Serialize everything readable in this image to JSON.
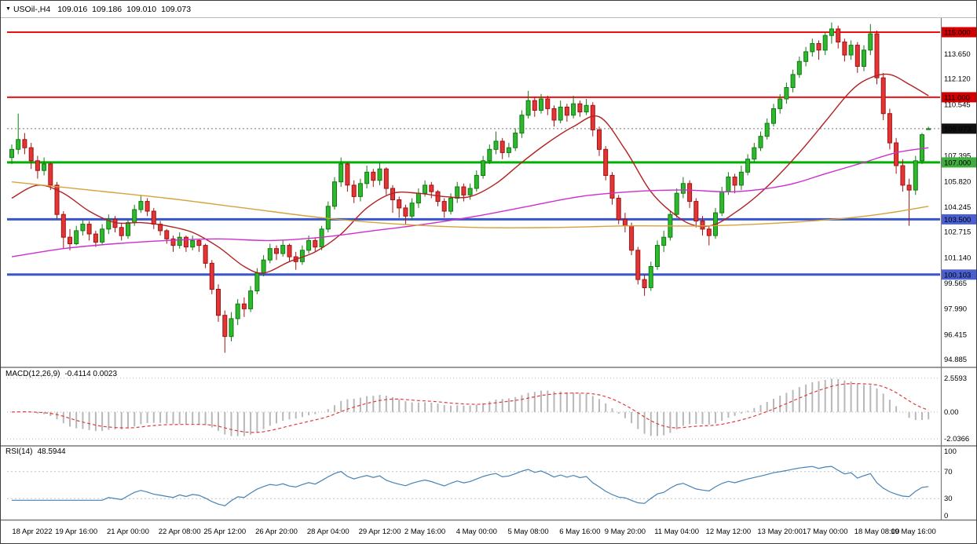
{
  "header": {
    "icon": "▼",
    "symbol_period": "USOil-,H4",
    "open": "109.016",
    "high": "109.186",
    "low": "109.010",
    "close": "109.073"
  },
  "chart_data": {
    "type": "candlestick",
    "symbol": "USOil-",
    "timeframe": "H4",
    "title": "USOil-,H4 109.016 109.186 109.010 109.073",
    "background": "#ffffff",
    "colors": {
      "bull": "#2eb82e",
      "bull_border": "#127a12",
      "bear": "#e23535",
      "bear_border": "#a31212",
      "ma_fast": "#b22222",
      "ma_medium": "#cc2fcc",
      "ma_slow": "#d8a23a",
      "macd_hist": "#b8b8b8",
      "macd_signal": "#e03c3c",
      "rsi": "#4682b4",
      "level_dotted": "#c4c4c4"
    },
    "price_axis": {
      "min": 94.45,
      "max": 115.87,
      "tick_labels": [
        "113.650",
        "112.120",
        "110.545",
        "107.395",
        "105.820",
        "104.245",
        "102.715",
        "101.140",
        "99.565",
        "97.990",
        "96.415",
        "94.885"
      ]
    },
    "current_price": {
      "price": 109.073,
      "label": "109.073",
      "line_color": "#777777",
      "badge_bg": "#111111"
    },
    "hlines": [
      {
        "price": 115.0,
        "label": "115.000",
        "color": "#ee1111",
        "badge_bg": "#d40000",
        "width": 2
      },
      {
        "price": 111.0,
        "label": "111.000",
        "color": "#ee1111",
        "badge_bg": "#d40000",
        "width": 2
      },
      {
        "price": 107.0,
        "label": "107.000",
        "color": "#00b000",
        "badge_bg": "#3fae3f",
        "width": 3
      },
      {
        "price": 103.5,
        "label": "103.500",
        "color": "#3a56cc",
        "badge_bg": "#4a5fd0",
        "width": 3
      },
      {
        "price": 100.103,
        "label": "100.103",
        "color": "#3a56cc",
        "badge_bg": "#4a5fd0",
        "width": 3
      }
    ],
    "moving_averages": [
      {
        "name": "fast",
        "color": "#b22222",
        "points": [
          [
            0,
            104.8
          ],
          [
            4,
            105.6
          ],
          [
            8,
            105.1
          ],
          [
            12,
            104.0
          ],
          [
            16,
            103.3
          ],
          [
            20,
            103.3
          ],
          [
            24,
            103.1
          ],
          [
            28,
            102.7
          ],
          [
            32,
            101.8
          ],
          [
            36,
            100.6
          ],
          [
            39,
            100.2
          ],
          [
            43,
            100.9
          ],
          [
            47,
            101.5
          ],
          [
            51,
            102.6
          ],
          [
            55,
            104.2
          ],
          [
            59,
            105.1
          ],
          [
            63,
            105.1
          ],
          [
            67,
            104.9
          ],
          [
            71,
            104.9
          ],
          [
            75,
            105.7
          ],
          [
            79,
            107.0
          ],
          [
            83,
            108.2
          ],
          [
            87,
            109.2
          ],
          [
            91,
            109.8
          ],
          [
            95,
            107.8
          ],
          [
            99,
            105.2
          ],
          [
            103,
            103.7
          ],
          [
            106,
            103.1
          ],
          [
            109,
            103.2
          ],
          [
            112,
            103.9
          ],
          [
            115,
            104.8
          ],
          [
            118,
            105.9
          ],
          [
            122,
            107.6
          ],
          [
            126,
            109.5
          ],
          [
            130,
            111.4
          ],
          [
            133,
            112.2
          ],
          [
            136,
            112.4
          ],
          [
            139,
            111.8
          ],
          [
            142,
            111.1
          ]
        ]
      },
      {
        "name": "medium",
        "color": "#cc2fcc",
        "points": [
          [
            0,
            101.2
          ],
          [
            8,
            101.7
          ],
          [
            16,
            102.0
          ],
          [
            24,
            102.2
          ],
          [
            32,
            102.3
          ],
          [
            40,
            102.2
          ],
          [
            48,
            102.4
          ],
          [
            56,
            102.8
          ],
          [
            64,
            103.2
          ],
          [
            72,
            103.7
          ],
          [
            80,
            104.3
          ],
          [
            88,
            104.9
          ],
          [
            96,
            105.2
          ],
          [
            104,
            105.3
          ],
          [
            112,
            105.2
          ],
          [
            120,
            105.6
          ],
          [
            126,
            106.3
          ],
          [
            132,
            107.0
          ],
          [
            137,
            107.6
          ],
          [
            142,
            107.9
          ]
        ]
      },
      {
        "name": "slow",
        "color": "#d8a23a",
        "points": [
          [
            0,
            105.8
          ],
          [
            12,
            105.3
          ],
          [
            24,
            104.8
          ],
          [
            36,
            104.2
          ],
          [
            48,
            103.6
          ],
          [
            60,
            103.2
          ],
          [
            72,
            103.0
          ],
          [
            84,
            103.0
          ],
          [
            96,
            103.1
          ],
          [
            108,
            103.1
          ],
          [
            120,
            103.3
          ],
          [
            130,
            103.6
          ],
          [
            136,
            103.9
          ],
          [
            142,
            104.3
          ]
        ]
      }
    ],
    "candles": [
      [
        107.3,
        108.1,
        106.9,
        107.8
      ],
      [
        107.8,
        110.0,
        107.5,
        108.4
      ],
      [
        108.4,
        108.8,
        107.5,
        107.9
      ],
      [
        107.9,
        108.2,
        106.6,
        107.1
      ],
      [
        107.1,
        107.4,
        106.0,
        106.5
      ],
      [
        106.5,
        107.3,
        106.2,
        106.9
      ],
      [
        106.9,
        107.0,
        105.3,
        105.6
      ],
      [
        105.6,
        105.8,
        103.5,
        103.8
      ],
      [
        103.8,
        104.0,
        101.7,
        102.4
      ],
      [
        102.4,
        102.9,
        101.6,
        102.0
      ],
      [
        102.0,
        103.1,
        101.9,
        102.8
      ],
      [
        102.8,
        103.5,
        102.5,
        103.2
      ],
      [
        103.2,
        103.4,
        102.2,
        102.6
      ],
      [
        102.6,
        102.8,
        101.8,
        102.1
      ],
      [
        102.1,
        103.2,
        101.9,
        102.9
      ],
      [
        102.9,
        103.8,
        102.6,
        103.5
      ],
      [
        103.5,
        103.7,
        102.7,
        103.0
      ],
      [
        103.0,
        103.3,
        102.2,
        102.5
      ],
      [
        102.5,
        103.5,
        102.3,
        103.3
      ],
      [
        103.3,
        104.4,
        103.1,
        104.1
      ],
      [
        104.1,
        105.0,
        103.9,
        104.6
      ],
      [
        104.6,
        104.8,
        103.7,
        104.0
      ],
      [
        104.0,
        104.2,
        102.9,
        103.2
      ],
      [
        103.2,
        103.4,
        102.5,
        102.8
      ],
      [
        102.8,
        102.9,
        102.0,
        102.3
      ],
      [
        102.3,
        102.5,
        101.5,
        101.9
      ],
      [
        101.9,
        102.7,
        101.7,
        102.4
      ],
      [
        102.4,
        102.5,
        101.5,
        101.8
      ],
      [
        101.8,
        102.5,
        101.6,
        102.2
      ],
      [
        102.2,
        102.3,
        101.5,
        101.9
      ],
      [
        101.9,
        102.0,
        100.5,
        100.8
      ],
      [
        100.8,
        101.0,
        98.9,
        99.2
      ],
      [
        99.2,
        99.5,
        97.2,
        97.6
      ],
      [
        97.6,
        97.9,
        95.3,
        96.3
      ],
      [
        96.3,
        97.8,
        96.0,
        97.4
      ],
      [
        97.4,
        98.6,
        97.0,
        98.3
      ],
      [
        98.3,
        98.7,
        97.5,
        98.0
      ],
      [
        98.0,
        99.4,
        97.8,
        99.1
      ],
      [
        99.1,
        100.5,
        98.9,
        100.2
      ],
      [
        100.2,
        101.3,
        100.0,
        101.0
      ],
      [
        101.0,
        102.0,
        100.8,
        101.7
      ],
      [
        101.7,
        101.9,
        101.0,
        101.4
      ],
      [
        101.4,
        102.2,
        101.2,
        101.9
      ],
      [
        101.9,
        102.0,
        100.9,
        101.2
      ],
      [
        101.2,
        101.5,
        100.4,
        100.9
      ],
      [
        100.9,
        101.9,
        100.7,
        101.6
      ],
      [
        101.6,
        102.5,
        101.4,
        102.2
      ],
      [
        102.2,
        102.4,
        101.5,
        101.8
      ],
      [
        101.8,
        103.1,
        101.6,
        102.9
      ],
      [
        102.9,
        104.6,
        102.7,
        104.3
      ],
      [
        104.3,
        106.1,
        104.1,
        105.8
      ],
      [
        105.8,
        107.3,
        105.5,
        106.9
      ],
      [
        106.9,
        107.0,
        105.2,
        105.6
      ],
      [
        105.6,
        105.9,
        104.5,
        104.9
      ],
      [
        104.9,
        106.0,
        104.6,
        105.7
      ],
      [
        105.7,
        106.8,
        105.4,
        106.4
      ],
      [
        106.4,
        106.6,
        105.5,
        105.9
      ],
      [
        105.9,
        107.0,
        105.6,
        106.6
      ],
      [
        106.6,
        106.7,
        105.0,
        105.4
      ],
      [
        105.4,
        105.6,
        103.9,
        104.7
      ],
      [
        104.7,
        104.9,
        103.6,
        104.2
      ],
      [
        104.2,
        104.4,
        103.2,
        103.7
      ],
      [
        103.7,
        104.8,
        103.5,
        104.5
      ],
      [
        104.5,
        105.4,
        104.2,
        105.1
      ],
      [
        105.1,
        105.9,
        104.9,
        105.6
      ],
      [
        105.6,
        105.8,
        104.8,
        105.2
      ],
      [
        105.2,
        105.3,
        104.3,
        104.6
      ],
      [
        104.6,
        104.8,
        103.6,
        104.0
      ],
      [
        104.0,
        105.1,
        103.8,
        104.8
      ],
      [
        104.8,
        105.8,
        104.5,
        105.5
      ],
      [
        105.5,
        105.7,
        104.6,
        105.0
      ],
      [
        105.0,
        105.7,
        104.7,
        105.4
      ],
      [
        105.4,
        106.5,
        105.2,
        106.2
      ],
      [
        106.2,
        107.4,
        106.0,
        107.1
      ],
      [
        107.1,
        108.1,
        106.9,
        107.8
      ],
      [
        107.8,
        108.9,
        107.5,
        108.3
      ],
      [
        108.3,
        108.5,
        107.2,
        107.6
      ],
      [
        107.6,
        108.2,
        107.3,
        107.9
      ],
      [
        107.9,
        109.1,
        107.7,
        108.8
      ],
      [
        108.8,
        110.2,
        108.5,
        109.9
      ],
      [
        109.9,
        111.4,
        109.7,
        110.8
      ],
      [
        110.8,
        111.0,
        109.8,
        110.2
      ],
      [
        110.2,
        111.2,
        110.0,
        110.9
      ],
      [
        110.9,
        111.1,
        109.9,
        110.3
      ],
      [
        110.3,
        110.5,
        109.2,
        109.6
      ],
      [
        109.6,
        110.8,
        109.4,
        110.4
      ],
      [
        110.4,
        110.6,
        109.5,
        109.9
      ],
      [
        109.9,
        111.1,
        109.7,
        110.6
      ],
      [
        110.6,
        110.8,
        109.8,
        110.1
      ],
      [
        110.1,
        110.9,
        109.9,
        110.5
      ],
      [
        110.5,
        110.7,
        108.6,
        109.0
      ],
      [
        109.0,
        109.2,
        107.4,
        107.8
      ],
      [
        107.8,
        108.0,
        105.9,
        106.2
      ],
      [
        106.2,
        106.4,
        104.4,
        104.8
      ],
      [
        104.8,
        105.0,
        103.2,
        103.5
      ],
      [
        103.5,
        103.9,
        102.7,
        103.1
      ],
      [
        103.1,
        103.3,
        101.3,
        101.6
      ],
      [
        101.6,
        101.8,
        99.5,
        99.8
      ],
      [
        99.8,
        100.1,
        98.8,
        99.3
      ],
      [
        99.3,
        100.9,
        99.1,
        100.6
      ],
      [
        100.6,
        102.2,
        100.4,
        101.9
      ],
      [
        101.9,
        102.8,
        101.5,
        102.4
      ],
      [
        102.4,
        104.0,
        102.2,
        103.8
      ],
      [
        103.8,
        105.4,
        103.6,
        105.1
      ],
      [
        105.1,
        106.1,
        104.8,
        105.7
      ],
      [
        105.7,
        105.9,
        104.2,
        104.6
      ],
      [
        104.6,
        104.8,
        103.0,
        103.4
      ],
      [
        103.4,
        103.7,
        102.5,
        102.9
      ],
      [
        102.9,
        103.1,
        101.9,
        102.5
      ],
      [
        102.5,
        104.2,
        102.3,
        103.9
      ],
      [
        103.9,
        105.5,
        103.7,
        105.2
      ],
      [
        105.2,
        106.4,
        105.0,
        106.1
      ],
      [
        106.1,
        106.3,
        105.1,
        105.6
      ],
      [
        105.6,
        106.8,
        105.3,
        106.4
      ],
      [
        106.4,
        107.5,
        106.2,
        107.2
      ],
      [
        107.2,
        108.2,
        107.0,
        107.9
      ],
      [
        107.9,
        108.9,
        107.7,
        108.6
      ],
      [
        108.6,
        109.7,
        108.4,
        109.4
      ],
      [
        109.4,
        110.6,
        109.2,
        110.3
      ],
      [
        110.3,
        111.2,
        110.0,
        110.9
      ],
      [
        110.9,
        111.9,
        110.6,
        111.6
      ],
      [
        111.6,
        112.7,
        111.3,
        112.4
      ],
      [
        112.4,
        113.5,
        112.2,
        113.2
      ],
      [
        113.2,
        114.1,
        112.9,
        113.8
      ],
      [
        113.8,
        114.6,
        113.5,
        114.3
      ],
      [
        114.3,
        114.5,
        113.3,
        113.9
      ],
      [
        113.9,
        115.0,
        113.6,
        114.8
      ],
      [
        114.8,
        115.6,
        114.3,
        115.2
      ],
      [
        115.2,
        115.4,
        114.0,
        114.4
      ],
      [
        114.4,
        114.6,
        113.2,
        113.6
      ],
      [
        113.6,
        114.5,
        113.3,
        114.2
      ],
      [
        114.2,
        114.4,
        112.5,
        112.9
      ],
      [
        112.9,
        114.2,
        112.6,
        113.9
      ],
      [
        113.9,
        115.5,
        113.6,
        114.9
      ],
      [
        114.9,
        115.1,
        111.8,
        112.2
      ],
      [
        112.2,
        112.5,
        109.6,
        110.0
      ],
      [
        110.0,
        110.3,
        107.8,
        108.2
      ],
      [
        108.2,
        108.5,
        106.3,
        106.8
      ],
      [
        106.8,
        107.2,
        105.2,
        105.6
      ],
      [
        105.6,
        106.0,
        103.1,
        105.3
      ],
      [
        105.3,
        107.4,
        105.0,
        107.1
      ],
      [
        107.1,
        108.8,
        106.9,
        108.7
      ],
      [
        109.016,
        109.186,
        109.01,
        109.073
      ]
    ],
    "time_labels": [
      {
        "bar": 1,
        "text": "18 Apr 2022"
      },
      {
        "bar": 10,
        "text": "19 Apr 16:00"
      },
      {
        "bar": 18,
        "text": "21 Apr 00:00"
      },
      {
        "bar": 26,
        "text": "22 Apr 08:00"
      },
      {
        "bar": 33,
        "text": "25 Apr 12:00"
      },
      {
        "bar": 41,
        "text": "26 Apr 20:00"
      },
      {
        "bar": 49,
        "text": "28 Apr 04:00"
      },
      {
        "bar": 57,
        "text": "29 Apr 12:00"
      },
      {
        "bar": 64,
        "text": "2 May 16:00"
      },
      {
        "bar": 72,
        "text": "4 May 00:00"
      },
      {
        "bar": 80,
        "text": "5 May 08:00"
      },
      {
        "bar": 88,
        "text": "6 May 16:00"
      },
      {
        "bar": 95,
        "text": "9 May 20:00"
      },
      {
        "bar": 103,
        "text": "11 May 04:00"
      },
      {
        "bar": 111,
        "text": "12 May 12:00"
      },
      {
        "bar": 119,
        "text": "13 May 20:00"
      },
      {
        "bar": 126,
        "text": "17 May 00:00"
      },
      {
        "bar": 134,
        "text": "18 May 08:00"
      },
      {
        "bar": 142,
        "text": "19 May 16:00"
      }
    ],
    "macd": {
      "name": "MACD(12,26,9)",
      "values": "-0.4114 0.0023",
      "fast": 12,
      "slow": 26,
      "signal_period": 9,
      "axis_labels": [
        "2.5593",
        "0.00",
        "-2.0366"
      ],
      "range": [
        -2.5,
        3.32
      ]
    },
    "rsi": {
      "name": "RSI(14)",
      "value": "48.5944",
      "period": 14,
      "levels": [
        30,
        70
      ],
      "axis_labels": [
        "100",
        "70",
        "30",
        "0"
      ],
      "range": [
        0,
        100
      ]
    }
  }
}
